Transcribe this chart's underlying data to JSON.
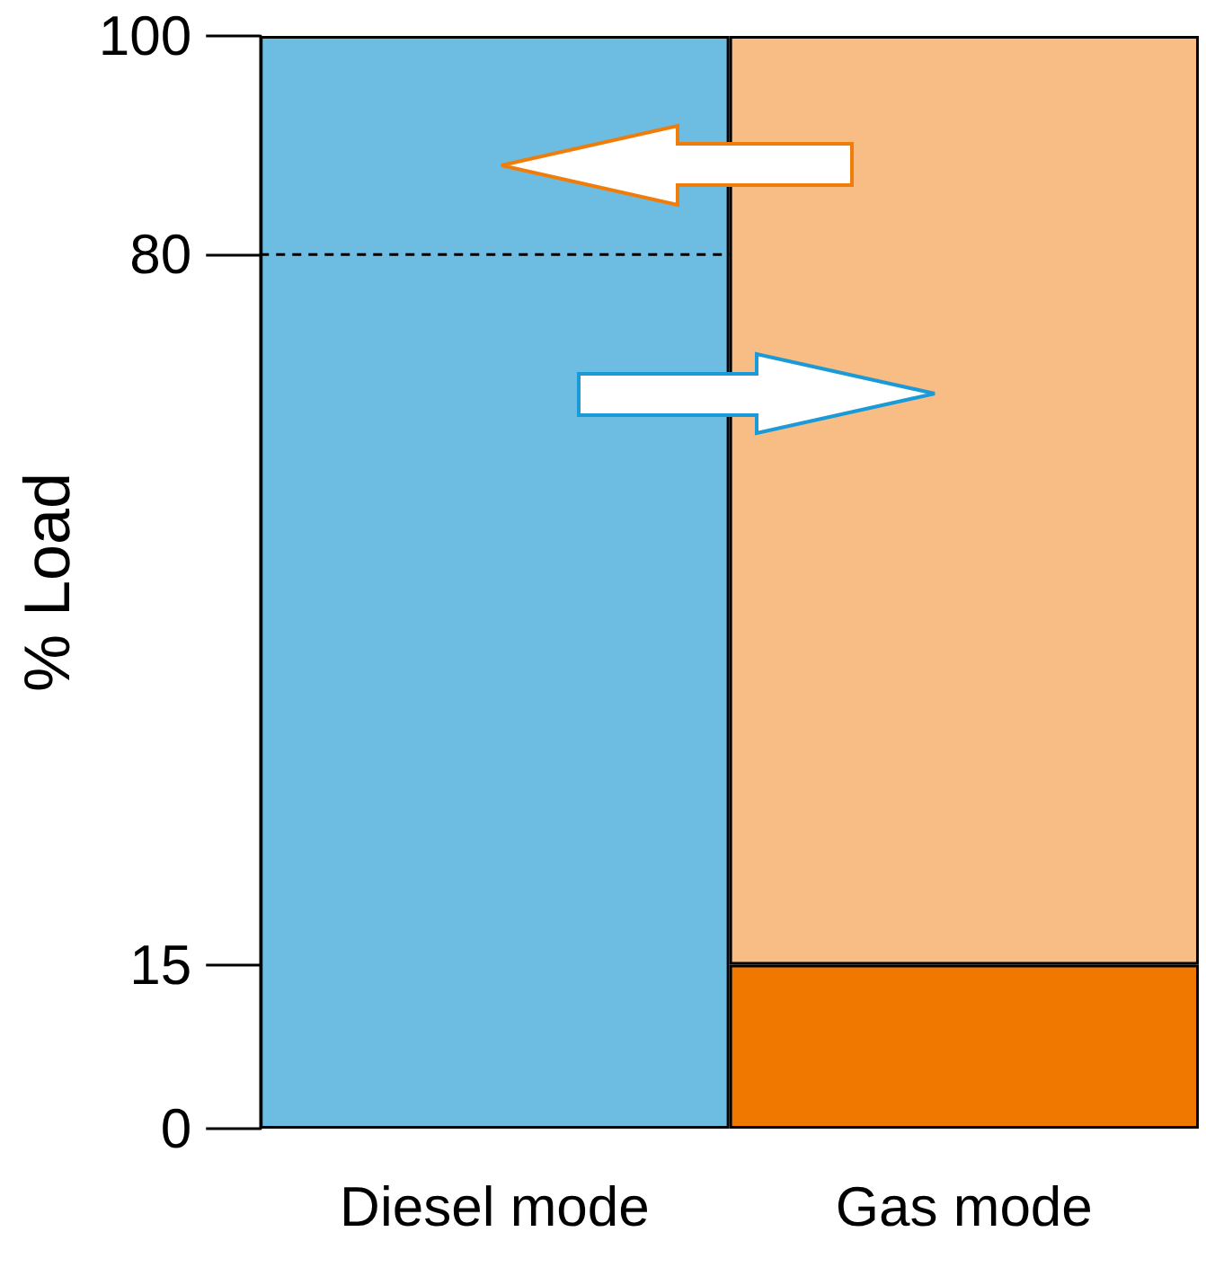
{
  "chart_data": {
    "type": "bar",
    "ylabel": "% Load",
    "categories": [
      "Diesel mode",
      "Gas mode"
    ],
    "stacked": true,
    "series": [
      {
        "values": [
          100,
          15
        ],
        "colors": [
          "#6dbde2",
          "#f07800"
        ]
      },
      {
        "values": [
          null,
          85
        ],
        "color": "#f7bd85"
      }
    ],
    "ylim": [
      0,
      100
    ],
    "yticks": [
      0,
      15,
      80,
      100
    ],
    "grid": false,
    "ref_lines": [
      {
        "axis": "y",
        "value": 80,
        "line_style": "dashed",
        "color": "#000000"
      }
    ]
  }
}
